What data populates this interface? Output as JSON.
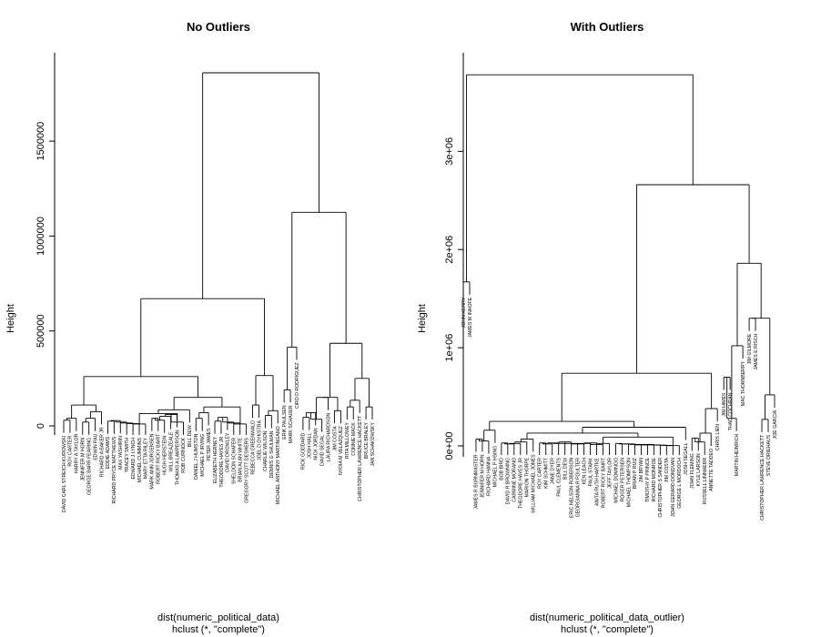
{
  "chart_data": [
    {
      "type": "dendrogram",
      "title": "No Outliers",
      "ylabel": "Height",
      "xlabel": "dist(numeric_political_data)",
      "sublabel": "hclust (*, \"complete\")",
      "yticks": [
        {
          "value": 0,
          "label": "0"
        },
        {
          "value": 500000,
          "label": "500000"
        },
        {
          "value": 1000000,
          "label": "1000000"
        },
        {
          "value": 1500000,
          "label": "1500000"
        }
      ],
      "ylim": [
        0,
        1860000
      ],
      "labels": [
        "DAVID CARL STREICH KUROWSKI",
        "ROY CARTER",
        "HARRY A TAYLOR",
        "JENNIFER M HORN",
        "GEORGE BARR FEARING",
        "EDWIN PAU",
        "RICHARD A BAKER JR",
        "EDDIE ADAMS",
        "RICHARD PRYCE MATTHEWS",
        "MAX YASHIRIN",
        "TRACEY SMITH",
        "EDWARD J LYNCH",
        "MICHAEL CUMMINS",
        "MARY ETTA RILEY",
        "MARK ANN JORGENSEN",
        "ROBERT RICKY BAIRT",
        "HUGH HERSTEIN",
        "WILL BREAZEALE",
        "THOMAS A LAMPERSON",
        "ROB CURNOCK",
        "BILL DEW",
        "DANIEL J HUMSTON",
        "MICHAEL P IRVING",
        "PETER JAMES",
        "ELIZABETH HERNEY",
        "THEODORE HAYES JR",
        "DAVID DROWLEY",
        "SHELDON SCHAFER",
        "BRIAN ALAN WHITE",
        "GREGORY SCOTT DESHERS",
        "REBECCA GREENWALD",
        "JOEL D DYKSTRA",
        "CHARLIE WILSON",
        "DENNIS G SHULMAN",
        "MICHAEL ANTHONY MARTINGANO",
        "ERIK PAULSEN",
        "MARK SCHAUER",
        "CIRO D RODRIGUEZ",
        "RICK GODDARD",
        "JOSH HALL",
        "NICK JORDAN",
        "DAVID SEGAL",
        "LAURA RICHARDSON",
        "JIM COSTA",
        "NYDIA M VELAZQUEZ",
        "RITA MILLOWEY",
        "CONNIE MACK",
        "CHRISTOPHER LAWRENCE HACKETT",
        "BRUCE BRALEY",
        "JAN SCHAKOWSKY"
      ],
      "merges": [
        {
          "a": "L0",
          "b": "L1",
          "h": 30000
        },
        {
          "a": "N0",
          "b": "L2",
          "h": 40000
        },
        {
          "a": "L3",
          "b": "L4",
          "h": 20000
        },
        {
          "a": "N2",
          "b": "L5",
          "h": 40000
        },
        {
          "a": "N3",
          "b": "L6",
          "h": 75000
        },
        {
          "a": "N1",
          "b": "N4",
          "h": 110000
        },
        {
          "a": "L7",
          "b": "L8",
          "h": 25000
        },
        {
          "a": "N6",
          "b": "L9",
          "h": 28000
        },
        {
          "a": "N7",
          "b": "L10",
          "h": 20000
        },
        {
          "a": "N8",
          "b": "L11",
          "h": 15000
        },
        {
          "a": "N9",
          "b": "L12",
          "h": 12000
        },
        {
          "a": "N10",
          "b": "L13",
          "h": 10000
        },
        {
          "a": "L14",
          "b": "L15",
          "h": 40000
        },
        {
          "a": "N12",
          "b": "L16",
          "h": 30000
        },
        {
          "a": "N13",
          "b": "L17",
          "h": 50000
        },
        {
          "a": "N14",
          "b": "L18",
          "h": 60000
        },
        {
          "a": "N15",
          "b": "L19",
          "h": 20000
        },
        {
          "a": "N11",
          "b": "N16",
          "h": 65000
        },
        {
          "a": "N17",
          "b": "L20",
          "h": 85000
        },
        {
          "a": "L21",
          "b": "L22",
          "h": 40000
        },
        {
          "a": "N19",
          "b": "L23",
          "h": 70000
        },
        {
          "a": "L24",
          "b": "L25",
          "h": 25000
        },
        {
          "a": "N21",
          "b": "L26",
          "h": 45000
        },
        {
          "a": "N22",
          "b": "L27",
          "h": 20000
        },
        {
          "a": "N23",
          "b": "L28",
          "h": 15000
        },
        {
          "a": "N24",
          "b": "L29",
          "h": 10000
        },
        {
          "a": "N20",
          "b": "N25",
          "h": 100000
        },
        {
          "a": "N18",
          "b": "N26",
          "h": 150000
        },
        {
          "a": "N5",
          "b": "N27",
          "h": 260000
        },
        {
          "a": "L30",
          "b": "L31",
          "h": 110000
        },
        {
          "a": "L32",
          "b": "L33",
          "h": 55000
        },
        {
          "a": "N30",
          "b": "L34",
          "h": 80000
        },
        {
          "a": "N29",
          "b": "N31",
          "h": 265000
        },
        {
          "a": "N28",
          "b": "N32",
          "h": 670000
        },
        {
          "a": "L35",
          "b": "L36",
          "h": 190000
        },
        {
          "a": "N34",
          "b": "L37",
          "h": 415000
        },
        {
          "a": "L38",
          "b": "L39",
          "h": 45000
        },
        {
          "a": "N36",
          "b": "L40",
          "h": 70000
        },
        {
          "a": "N37",
          "b": "L41",
          "h": 35000
        },
        {
          "a": "N38",
          "b": "L42",
          "h": 150000
        },
        {
          "a": "L43",
          "b": "L44",
          "h": 80000
        },
        {
          "a": "N39",
          "b": "N40",
          "h": 150000
        },
        {
          "a": "L45",
          "b": "L46",
          "h": 100000
        },
        {
          "a": "N42",
          "b": "L47",
          "h": 135000
        },
        {
          "a": "L48",
          "b": "L49",
          "h": 100000
        },
        {
          "a": "N43",
          "b": "N44",
          "h": 250000
        },
        {
          "a": "N41",
          "b": "N45",
          "h": 435000
        },
        {
          "a": "N35",
          "b": "N46",
          "h": 1125000
        },
        {
          "a": "N33",
          "b": "N47",
          "h": 1860000
        }
      ]
    },
    {
      "type": "dendrogram",
      "title": "With Outliers",
      "ylabel": "Height",
      "xlabel": "dist(numeric_political_data_outlier)",
      "sublabel": "hclust (*, \"complete\")",
      "yticks": [
        {
          "value": 0,
          "label": "0e+00"
        },
        {
          "value": 1000000,
          "label": "1e+06"
        },
        {
          "value": 2000000,
          "label": "2e+06"
        },
        {
          "value": 3000000,
          "label": "3e+06"
        }
      ],
      "ylim": [
        0,
        3800000
      ],
      "labels": [
        "JOHN KERRY",
        "JAMES M INHOFE",
        "JAMES R BURNMASTER",
        "JENNIFER M HORN",
        "RICHARD HANNA",
        "MICHAEL P HSING",
        "BOB BIRD",
        "DAVID R BROWNING",
        "CARMINE MORANO",
        "THEODORE HAYES JR",
        "MARION THORPE",
        "WILLIAM MICHAEL JONES",
        "ROY CARTER",
        "KIM SCHMITT",
        "JANE DYER",
        "PAUL CLEMENTS",
        "BILL DEW",
        "ERIC NELSON ROBERSON",
        "GEORGIANNA R FOULTER",
        "KEN LEACH",
        "PAUL STARK",
        "ANITA RUTH HARTKE",
        "ROBERT RICKY BAIRT",
        "JEFF TAYLOR",
        "MICHAEL DOMINGO",
        "ROGER PETERSEN",
        "MICHAEL THOMPSON",
        "BRIAN P RUIZ",
        "JIM BRYAN",
        "TIMOTHY P PRINCE",
        "RICHARD MONROE",
        "CHRISTOPHER S SANDER",
        "JIM COSTA",
        "JOHN GERARD DONOVAN",
        "GEORGE L MORDOCH",
        "JOSH SEGALL",
        "JOHN FLEMING",
        "KYLE LARSON",
        "RUSSELL LINNHERR",
        "ANNETTE TADDEO",
        "CHRIS LIEN",
        "JIM HIMES",
        "THAD COCHRAN",
        "MARTIN HEINRICH",
        "MAC THORNBERRY",
        "JIM GILMORE",
        "JAMES E RISCH",
        "CHRISTOPHER LAWRENCE HACKETT",
        "STEVE DRIEHAUS",
        "JOE GARCIA"
      ],
      "merges": [
        {
          "a": "L0",
          "b": "L1",
          "h": 1670000
        },
        {
          "a": "L2",
          "b": "L3",
          "h": 70000
        },
        {
          "a": "N1",
          "b": "L4",
          "h": 50000
        },
        {
          "a": "N2",
          "b": "L5",
          "h": 160000
        },
        {
          "a": "L6",
          "b": "L7",
          "h": 30000
        },
        {
          "a": "N4",
          "b": "L8",
          "h": 20000
        },
        {
          "a": "N5",
          "b": "L9",
          "h": 25000
        },
        {
          "a": "N6",
          "b": "L10",
          "h": 40000
        },
        {
          "a": "N7",
          "b": "L11",
          "h": 70000
        },
        {
          "a": "L12",
          "b": "L13",
          "h": 30000
        },
        {
          "a": "N9",
          "b": "L14",
          "h": 20000
        },
        {
          "a": "N10",
          "b": "L15",
          "h": 30000
        },
        {
          "a": "N11",
          "b": "L16",
          "h": 25000
        },
        {
          "a": "N12",
          "b": "L17",
          "h": 40000
        },
        {
          "a": "N13",
          "b": "L18",
          "h": 25000
        },
        {
          "a": "N14",
          "b": "L19",
          "h": 20000
        },
        {
          "a": "N15",
          "b": "L20",
          "h": 25000
        },
        {
          "a": "N16",
          "b": "L21",
          "h": 30000
        },
        {
          "a": "N17",
          "b": "L22",
          "h": 15000
        },
        {
          "a": "N18",
          "b": "L23",
          "h": 25000
        },
        {
          "a": "L24",
          "b": "L25",
          "h": 25000
        },
        {
          "a": "N20",
          "b": "L26",
          "h": 20000
        },
        {
          "a": "N21",
          "b": "L27",
          "h": 20000
        },
        {
          "a": "N22",
          "b": "L28",
          "h": 15000
        },
        {
          "a": "N23",
          "b": "L29",
          "h": 10000
        },
        {
          "a": "N24",
          "b": "L30",
          "h": 15000
        },
        {
          "a": "N25",
          "b": "L31",
          "h": 10000
        },
        {
          "a": "N26",
          "b": "L32",
          "h": 8000
        },
        {
          "a": "N27",
          "b": "L33",
          "h": 5000
        },
        {
          "a": "N28",
          "b": "L34",
          "h": 3000
        },
        {
          "a": "N19",
          "b": "N29",
          "h": 90000
        },
        {
          "a": "N8",
          "b": "N30",
          "h": 130000
        },
        {
          "a": "N31",
          "b": "L35",
          "h": 190000
        },
        {
          "a": "N3",
          "b": "N32",
          "h": 250000
        },
        {
          "a": "L36",
          "b": "L37",
          "h": 80000
        },
        {
          "a": "N34",
          "b": "L38",
          "h": 40000
        },
        {
          "a": "N35",
          "b": "L39",
          "h": 130000
        },
        {
          "a": "N36",
          "b": "L40",
          "h": 380000
        },
        {
          "a": "N33",
          "b": "N37",
          "h": 740000
        },
        {
          "a": "L41",
          "b": "L42",
          "h": 700000
        },
        {
          "a": "N39",
          "b": "L43",
          "h": 280000
        },
        {
          "a": "N40",
          "b": "L44",
          "h": 1020000
        },
        {
          "a": "L45",
          "b": "L46",
          "h": 1300000
        },
        {
          "a": "L47",
          "b": "L48",
          "h": 270000
        },
        {
          "a": "N43",
          "b": "L49",
          "h": 520000
        },
        {
          "a": "N42",
          "b": "N44",
          "h": 1300000
        },
        {
          "a": "N41",
          "b": "N45",
          "h": 1860000
        },
        {
          "a": "N38",
          "b": "N46",
          "h": 2660000
        },
        {
          "a": "N0",
          "b": "N47",
          "h": 3780000
        }
      ]
    }
  ]
}
